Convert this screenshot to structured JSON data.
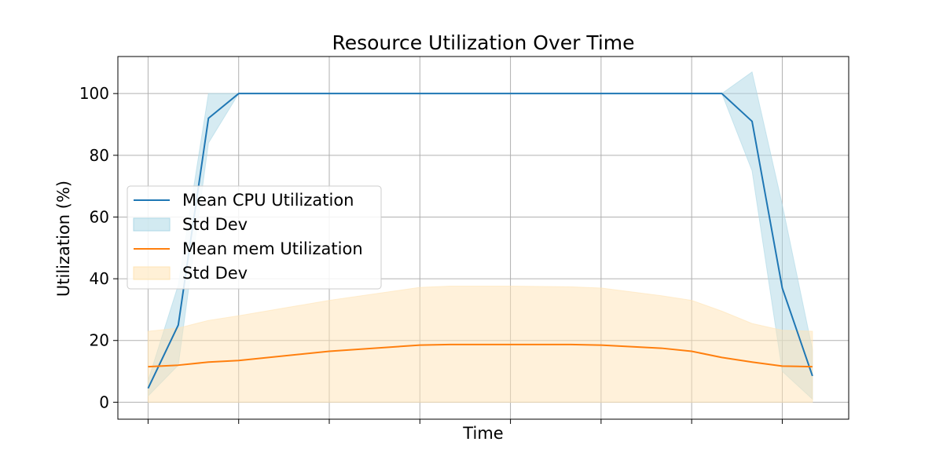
{
  "chart_data": {
    "type": "line",
    "title": "Resource Utilization Over Time",
    "xlabel": "Time",
    "ylabel": "Utilization (%)",
    "ylim": [
      -5.5,
      112
    ],
    "xlim": [
      -0.5,
      11.6
    ],
    "yticks": [
      0,
      20,
      40,
      60,
      80,
      100
    ],
    "xticks": [
      0,
      1.5,
      3,
      4.5,
      6,
      7.5,
      9,
      10.5
    ],
    "grid": true,
    "legend_position": "center-left",
    "x": [
      0,
      0.5,
      1,
      1.5,
      3,
      4.5,
      5,
      6,
      7,
      7.5,
      8.5,
      9,
      9.5,
      10,
      10.5,
      11
    ],
    "series": [
      {
        "name": "Mean CPU Utilization",
        "color": "#1f77b4",
        "values": [
          4.5,
          25,
          92,
          100,
          100,
          100,
          100,
          100,
          100,
          100,
          100,
          100,
          100,
          91,
          37,
          8.5
        ],
        "band": {
          "name": "Std Dev",
          "color": "#add8e6",
          "lower": [
            2,
            12,
            84,
            100,
            100,
            100,
            100,
            100,
            100,
            100,
            100,
            100,
            100,
            75,
            10,
            1
          ],
          "upper": [
            7,
            38,
            100,
            100,
            100,
            100,
            100,
            100,
            100,
            100,
            100,
            100,
            100,
            107,
            64,
            17
          ]
        }
      },
      {
        "name": "Mean mem Utilization",
        "color": "#ff7f0e",
        "values": [
          11.5,
          12,
          13,
          13.5,
          16.5,
          18.5,
          18.7,
          18.7,
          18.7,
          18.5,
          17.5,
          16.5,
          14.5,
          13,
          11.7,
          11.5
        ],
        "band": {
          "name": "Std Dev",
          "color": "#ffe4b5",
          "lower": [
            0,
            0,
            0,
            0,
            0,
            0,
            0,
            0,
            0,
            0,
            0,
            0,
            0,
            0,
            0,
            0
          ],
          "upper": [
            23,
            24,
            26.5,
            28,
            33,
            37.2,
            37.6,
            37.6,
            37.4,
            37,
            34.5,
            33,
            29.5,
            25.5,
            23.3,
            23
          ]
        }
      }
    ],
    "legend": [
      {
        "label": "Mean CPU Utilization",
        "kind": "line",
        "color": "#1f77b4"
      },
      {
        "label": "Std Dev",
        "kind": "patch",
        "color": "#add8e6"
      },
      {
        "label": "Mean mem Utilization",
        "kind": "line",
        "color": "#ff7f0e"
      },
      {
        "label": "Std Dev",
        "kind": "patch",
        "color": "#ffe4b5"
      }
    ]
  }
}
